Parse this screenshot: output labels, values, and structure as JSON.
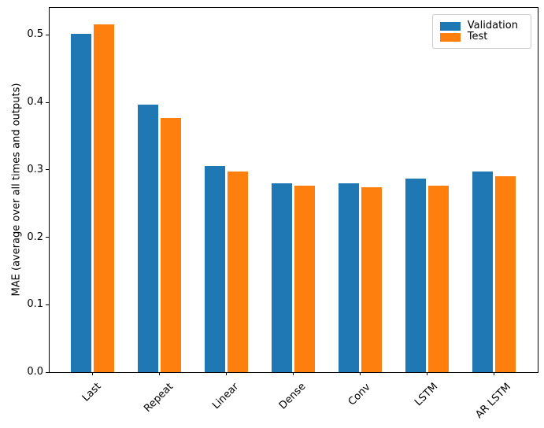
{
  "chart_data": {
    "type": "bar",
    "title": "",
    "xlabel": "",
    "ylabel": "MAE (average over all times and outputs)",
    "categories": [
      "Last",
      "Repeat",
      "Linear",
      "Dense",
      "Conv",
      "LSTM",
      "AR LSTM"
    ],
    "series": [
      {
        "name": "Validation",
        "color": "#1f77b4",
        "values": [
          0.501,
          0.396,
          0.306,
          0.28,
          0.28,
          0.287,
          0.297
        ]
      },
      {
        "name": "Test",
        "color": "#ff7f0e",
        "values": [
          0.515,
          0.377,
          0.298,
          0.276,
          0.274,
          0.276,
          0.291
        ]
      }
    ],
    "ylim": [
      0,
      0.54
    ],
    "yticks": [
      0.0,
      0.1,
      0.2,
      0.3,
      0.4,
      0.5
    ],
    "ytick_labels": [
      "0.0",
      "0.1",
      "0.2",
      "0.3",
      "0.4",
      "0.5"
    ],
    "xtick_rotation": 45,
    "grid": false,
    "legend_position": "upper right",
    "axis_color": "#000000",
    "legend_border_color": "#cccccc"
  }
}
